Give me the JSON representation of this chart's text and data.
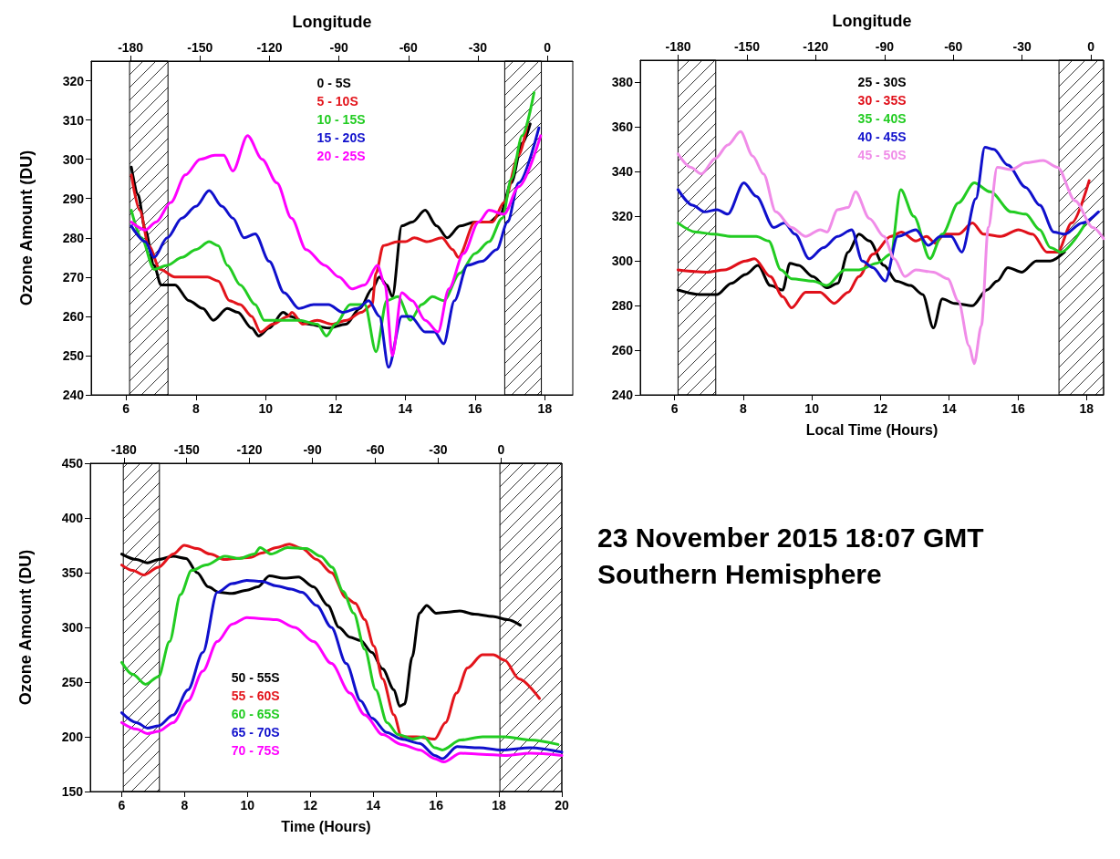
{
  "chart_data": [
    {
      "type": "line",
      "ylabel": "Ozone Amount (DU)",
      "x2label": "Longitude",
      "xlim": [
        5,
        18.8
      ],
      "xticks": [
        6,
        8,
        10,
        12,
        14,
        16,
        18
      ],
      "x2lim": [
        -197,
        11
      ],
      "x2ticks": [
        -180,
        -150,
        -120,
        -90,
        -60,
        -30,
        0
      ],
      "ylim": [
        240,
        325
      ],
      "yticks": [
        240,
        250,
        260,
        270,
        280,
        290,
        300,
        310,
        320
      ],
      "legend": "top",
      "bands": [
        {
          "axis": "x",
          "from": 6.1,
          "to": 7.2
        },
        {
          "axis": "x",
          "from": 16.85,
          "to": 17.9
        }
      ],
      "series": [
        {
          "name": "0 - 5S",
          "color": "#000000",
          "x": [
            6.15,
            6.34,
            6.55,
            6.8,
            7.0,
            7.4,
            7.8,
            8.2,
            8.5,
            8.9,
            9.2,
            9.6,
            9.8,
            10.1,
            10.5,
            10.7,
            11.25,
            11.8,
            12.3,
            12.7,
            13.05,
            13.26,
            13.47,
            13.63,
            13.9,
            14.2,
            14.57,
            14.9,
            15.2,
            15.57,
            16.0,
            16.4,
            16.72,
            17.04,
            17.35,
            17.58
          ],
          "values": [
            298,
            291,
            282,
            273,
            268,
            268,
            264,
            262,
            259,
            262,
            261,
            257,
            255,
            257,
            261,
            260,
            258,
            257,
            258,
            262,
            267,
            270,
            268,
            265,
            283,
            284,
            287,
            283,
            280,
            283,
            284,
            284,
            286,
            294,
            304,
            309
          ]
        },
        {
          "name": "5 - 10S",
          "color": "#e3141b",
          "x": [
            6.15,
            6.39,
            6.65,
            6.97,
            7.4,
            7.8,
            8.33,
            8.64,
            8.96,
            9.27,
            9.6,
            9.85,
            10.2,
            10.64,
            10.75,
            11.06,
            11.48,
            11.9,
            12.32,
            12.74,
            13.05,
            13.16,
            13.37,
            13.79,
            14.0,
            14.26,
            14.63,
            15.05,
            15.36,
            15.52,
            16.0,
            16.5,
            16.83,
            17.25,
            17.5
          ],
          "values": [
            296,
            287,
            278,
            272,
            270,
            270,
            270,
            269,
            264,
            263,
            260,
            256,
            258,
            260,
            261,
            258,
            259,
            258,
            259,
            261,
            263,
            271,
            278,
            279,
            279,
            280,
            279,
            280,
            277,
            275,
            284,
            284,
            289,
            301,
            309
          ]
        },
        {
          "name": "10 - 15S",
          "color": "#22cc22",
          "x": [
            6.15,
            6.44,
            6.8,
            7.18,
            7.6,
            8.0,
            8.38,
            8.64,
            8.9,
            9.27,
            9.7,
            9.96,
            10.43,
            10.95,
            11.48,
            11.74,
            12.0,
            12.42,
            12.84,
            13.16,
            13.47,
            13.79,
            14.15,
            14.47,
            14.78,
            15.1,
            15.57,
            16.0,
            16.4,
            16.78,
            17.04,
            17.35,
            17.69
          ],
          "values": [
            287,
            280,
            272,
            273,
            275,
            277,
            279,
            278,
            273,
            268,
            263,
            259,
            259,
            259,
            258,
            255,
            258,
            263,
            263,
            251,
            264,
            265,
            259,
            263,
            265,
            264,
            271,
            276,
            279,
            285,
            295,
            306,
            317
          ]
        },
        {
          "name": "15 - 20S",
          "color": "#1010cc",
          "x": [
            6.15,
            6.55,
            6.8,
            7.18,
            7.6,
            8.0,
            8.38,
            8.75,
            9.06,
            9.38,
            9.7,
            10.1,
            10.53,
            10.95,
            11.37,
            11.8,
            12.21,
            12.63,
            12.95,
            13.26,
            13.52,
            13.9,
            14.15,
            14.57,
            14.84,
            15.1,
            15.41,
            15.78,
            16.2,
            16.62,
            16.93,
            17.25,
            17.83
          ],
          "values": [
            283,
            279,
            275,
            280,
            285,
            288,
            292,
            288,
            285,
            280,
            281,
            274,
            266,
            262,
            263,
            263,
            261,
            262,
            264,
            260,
            247,
            260,
            260,
            256,
            256,
            253,
            264,
            273,
            274,
            277,
            284,
            294,
            308
          ]
        },
        {
          "name": "20 - 25S",
          "color": "#ff00ff",
          "x": [
            6.15,
            6.55,
            6.86,
            7.28,
            7.7,
            8.12,
            8.54,
            8.8,
            9.06,
            9.48,
            9.9,
            10.32,
            10.74,
            11.16,
            11.69,
            12.1,
            12.47,
            12.84,
            13.2,
            13.42,
            13.63,
            13.9,
            14.2,
            14.57,
            14.94,
            15.25,
            15.67,
            16.1,
            16.4,
            16.83,
            17.25,
            17.88
          ],
          "values": [
            284,
            282,
            284,
            289,
            296,
            300,
            301,
            301,
            297,
            306,
            300,
            294,
            285,
            277,
            273,
            270,
            267,
            268,
            273,
            268,
            250,
            266,
            264,
            259,
            256,
            267,
            276,
            284,
            287,
            286,
            293,
            306
          ]
        }
      ]
    },
    {
      "type": "line",
      "xlabel": "Local Time (Hours)",
      "x2label": "Longitude",
      "xlim": [
        5,
        18.5
      ],
      "xticks": [
        6,
        8,
        10,
        12,
        14,
        16,
        18
      ],
      "x2lim": [
        -196.5,
        5.5
      ],
      "x2ticks": [
        -180,
        -150,
        -120,
        -90,
        -60,
        -30,
        0
      ],
      "ylim": [
        240,
        390
      ],
      "yticks": [
        240,
        260,
        280,
        300,
        320,
        340,
        360,
        380
      ],
      "legend": "top",
      "bands": [
        {
          "axis": "x",
          "from": 6.1,
          "to": 7.2
        },
        {
          "axis": "x",
          "from": 17.2,
          "to": 18.5
        }
      ],
      "series": [
        {
          "name": "25 - 30S",
          "color": "#000000",
          "x": [
            6.1,
            6.72,
            7.24,
            7.65,
            8.07,
            8.43,
            8.79,
            9.15,
            9.36,
            9.62,
            10.03,
            10.44,
            10.75,
            11.06,
            11.37,
            11.68,
            12.1,
            12.46,
            12.87,
            13.23,
            13.54,
            13.8,
            14.16,
            14.68,
            15.1,
            15.4,
            15.71,
            16.12,
            16.54,
            16.95,
            17.36
          ],
          "values": [
            287,
            285,
            285,
            290,
            294,
            298,
            289,
            287,
            299,
            298,
            293,
            288,
            290,
            304,
            312,
            309,
            298,
            291,
            289,
            285,
            270,
            283,
            281,
            280,
            287,
            291,
            297,
            295,
            300,
            300,
            304
          ]
        },
        {
          "name": "30 - 35S",
          "color": "#e0101a",
          "x": [
            6.1,
            6.93,
            7.45,
            8.07,
            8.33,
            8.79,
            9.15,
            9.41,
            9.82,
            10.24,
            10.65,
            11.06,
            11.37,
            11.78,
            12.3,
            12.61,
            13.03,
            13.34,
            13.6,
            13.86,
            14.27,
            14.68,
            15.0,
            15.5,
            16.02,
            16.43,
            16.85,
            17.16,
            17.57,
            18.08
          ],
          "values": [
            296,
            295,
            296,
            300,
            301,
            293,
            284,
            279,
            286,
            286,
            281,
            286,
            293,
            303,
            311,
            313,
            309,
            311,
            308,
            312,
            312,
            317,
            312,
            311,
            314,
            312,
            304,
            304,
            317,
            336
          ]
        },
        {
          "name": "35 - 40S",
          "color": "#22cc22",
          "x": [
            6.1,
            6.62,
            7.14,
            7.65,
            8.38,
            8.74,
            9.1,
            9.41,
            10.03,
            10.44,
            10.96,
            11.37,
            11.89,
            12.3,
            12.59,
            12.97,
            13.44,
            13.8,
            14.27,
            14.73,
            15.2,
            15.81,
            16.23,
            16.64,
            16.95,
            17.26,
            17.98
          ],
          "values": [
            317,
            313,
            312,
            311,
            311,
            309,
            296,
            292,
            291,
            289,
            296,
            296,
            299,
            303,
            332,
            320,
            301,
            312,
            326,
            335,
            331,
            322,
            321,
            314,
            306,
            304,
            317
          ]
        },
        {
          "name": "40 - 45S",
          "color": "#1010cc",
          "x": [
            6.1,
            6.52,
            6.88,
            7.24,
            7.55,
            8.02,
            8.38,
            8.89,
            9.2,
            9.51,
            9.92,
            10.34,
            10.75,
            11.16,
            11.47,
            11.78,
            12.14,
            12.5,
            13.03,
            13.39,
            13.75,
            14.06,
            14.37,
            14.78,
            15.04,
            15.3,
            15.71,
            16.23,
            16.64,
            17.05,
            17.36,
            17.88,
            18.35
          ],
          "values": [
            332,
            325,
            322,
            323,
            321,
            335,
            329,
            315,
            317,
            312,
            301,
            306,
            311,
            314,
            300,
            297,
            291,
            311,
            314,
            307,
            311,
            311,
            304,
            328,
            351,
            350,
            343,
            333,
            325,
            313,
            312,
            317,
            322
          ]
        },
        {
          "name": "45 - 50S",
          "color": "#f08ce8",
          "x": [
            6.1,
            6.47,
            6.78,
            7.19,
            7.55,
            7.92,
            8.28,
            8.59,
            8.95,
            9.41,
            9.82,
            10.24,
            10.44,
            10.75,
            11.06,
            11.27,
            11.68,
            12.1,
            12.4,
            12.71,
            13.03,
            13.54,
            13.96,
            14.27,
            14.58,
            14.73,
            14.94,
            15.14,
            15.4,
            15.81,
            16.23,
            16.74,
            17.16,
            17.67,
            18.19,
            18.5
          ],
          "values": [
            348,
            342,
            339,
            346,
            352,
            358,
            347,
            339,
            322,
            315,
            311,
            314,
            313,
            323,
            324,
            331,
            319,
            311,
            301,
            293,
            296,
            295,
            292,
            282,
            262,
            254,
            271,
            315,
            342,
            341,
            344,
            345,
            342,
            327,
            315,
            310
          ]
        }
      ]
    },
    {
      "type": "line",
      "xlabel": "Time (Hours)",
      "ylabel": "Ozone Amount (DU)",
      "xlim": [
        5,
        20
      ],
      "xticks": [
        6,
        8,
        10,
        12,
        14,
        16,
        18,
        20
      ],
      "x2lim": [
        -196,
        29
      ],
      "x2ticks": [
        -180,
        -150,
        -120,
        -90,
        -60,
        -30,
        0
      ],
      "ylim": [
        150,
        450
      ],
      "yticks": [
        150,
        200,
        250,
        300,
        350,
        400,
        450
      ],
      "legend": "bottom",
      "bands": [
        {
          "axis": "x",
          "from": 6.05,
          "to": 7.2
        },
        {
          "axis": "x",
          "from": 18.03,
          "to": 20
        }
      ],
      "series": [
        {
          "name": "50 - 55S",
          "color": "#000000",
          "x": [
            6.0,
            6.47,
            6.82,
            7.17,
            7.64,
            8.05,
            8.4,
            8.75,
            9.1,
            9.51,
            9.98,
            10.33,
            10.7,
            11.15,
            11.62,
            12.1,
            12.56,
            12.91,
            13.26,
            13.6,
            13.96,
            14.3,
            14.66,
            14.84,
            15.0,
            15.24,
            15.47,
            15.7,
            16.0,
            16.4,
            16.75,
            17.22,
            17.8,
            18.27,
            18.68
          ],
          "values": [
            367,
            362,
            359,
            362,
            365,
            363,
            350,
            337,
            332,
            331,
            334,
            337,
            347,
            345,
            346,
            337,
            320,
            300,
            291,
            288,
            277,
            262,
            243,
            228,
            230,
            273,
            313,
            320,
            313,
            314,
            315,
            312,
            310,
            307,
            302
          ]
        },
        {
          "name": "55 - 60S",
          "color": "#e3141b",
          "x": [
            6.0,
            6.35,
            6.7,
            7.17,
            7.64,
            7.99,
            8.4,
            8.81,
            9.28,
            9.63,
            10.1,
            10.45,
            10.92,
            11.33,
            11.74,
            12.2,
            12.67,
            13.14,
            13.43,
            13.73,
            14.02,
            14.3,
            14.66,
            14.9,
            15.37,
            15.96,
            16.3,
            16.65,
            17.0,
            17.47,
            17.82,
            18.18,
            18.64,
            19.29
          ],
          "values": [
            357,
            352,
            348,
            355,
            367,
            375,
            372,
            367,
            362,
            363,
            364,
            368,
            373,
            376,
            372,
            362,
            350,
            327,
            322,
            307,
            283,
            253,
            220,
            200,
            200,
            198,
            213,
            240,
            263,
            275,
            275,
            270,
            253,
            235
          ]
        },
        {
          "name": "60 - 65S",
          "color": "#22cc22",
          "x": [
            6.0,
            6.35,
            6.76,
            7.17,
            7.52,
            7.87,
            8.22,
            8.69,
            9.28,
            9.75,
            10.22,
            10.4,
            10.75,
            11.28,
            11.87,
            12.33,
            12.69,
            13.04,
            13.38,
            13.73,
            14.08,
            14.44,
            14.79,
            15.26,
            15.61,
            15.96,
            16.2,
            16.78,
            17.48,
            18.18,
            19.0,
            19.88
          ],
          "values": [
            268,
            257,
            248,
            255,
            287,
            330,
            352,
            357,
            365,
            363,
            367,
            373,
            367,
            373,
            372,
            365,
            355,
            333,
            313,
            280,
            243,
            213,
            202,
            198,
            200,
            190,
            188,
            197,
            200,
            200,
            197,
            193
          ]
        },
        {
          "name": "65 - 70S",
          "color": "#1010cc",
          "x": [
            6.0,
            6.47,
            6.82,
            7.17,
            7.64,
            8.11,
            8.58,
            9.04,
            9.51,
            9.98,
            10.45,
            10.92,
            11.39,
            11.74,
            12.2,
            12.67,
            13.14,
            13.6,
            13.96,
            14.43,
            14.9,
            15.48,
            15.96,
            16.2,
            16.67,
            17.37,
            18.08,
            19.0,
            20.0
          ],
          "values": [
            222,
            213,
            208,
            210,
            220,
            243,
            277,
            332,
            340,
            343,
            342,
            338,
            335,
            332,
            320,
            300,
            267,
            233,
            217,
            204,
            198,
            194,
            183,
            180,
            191,
            190,
            188,
            190,
            186
          ]
        },
        {
          "name": "70 - 75S",
          "color": "#ff00ff",
          "x": [
            6.0,
            6.47,
            6.82,
            7.17,
            7.64,
            8.11,
            8.58,
            9.04,
            9.51,
            9.98,
            10.45,
            10.92,
            11.5,
            12.1,
            12.67,
            13.26,
            13.73,
            14.3,
            14.9,
            15.48,
            15.96,
            16.25,
            16.78,
            17.48,
            18.18,
            19.0,
            20.0
          ],
          "values": [
            213,
            207,
            203,
            205,
            213,
            233,
            260,
            287,
            303,
            309,
            308,
            307,
            300,
            287,
            267,
            240,
            220,
            202,
            193,
            188,
            180,
            177,
            185,
            184,
            183,
            185,
            183
          ]
        }
      ]
    },
    {
      "type": "other",
      "title": "23 November 2015 18:07 GMT",
      "subtitle": "Southern Hemisphere"
    }
  ]
}
